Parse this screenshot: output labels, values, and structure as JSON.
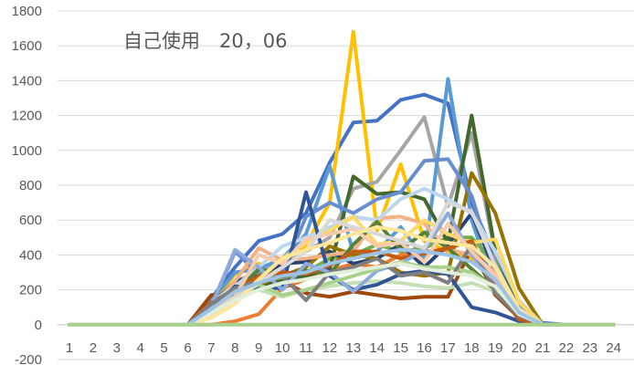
{
  "chart_data": {
    "type": "line",
    "title": "自己使用　20，06",
    "x": [
      1,
      2,
      3,
      4,
      5,
      6,
      7,
      8,
      9,
      10,
      11,
      12,
      13,
      14,
      15,
      16,
      17,
      18,
      19,
      20,
      21,
      22,
      23,
      24
    ],
    "xlabel": "",
    "ylabel": "",
    "ylim": [
      -200,
      1800
    ],
    "yticks": [
      -200,
      0,
      200,
      400,
      600,
      800,
      1000,
      1200,
      1400,
      1600,
      1800
    ],
    "grid": true,
    "legend": "none",
    "series": [
      {
        "color": "#4472C4",
        "values": [
          0,
          0,
          0,
          0,
          0,
          0,
          150,
          330,
          480,
          520,
          640,
          930,
          1160,
          1170,
          1290,
          1320,
          1270,
          700,
          380,
          120,
          10,
          0,
          0,
          0
        ]
      },
      {
        "color": "#FFC000",
        "values": [
          0,
          0,
          0,
          0,
          0,
          0,
          120,
          290,
          350,
          300,
          460,
          700,
          1680,
          540,
          920,
          480,
          420,
          380,
          300,
          80,
          0,
          0,
          0,
          0
        ]
      },
      {
        "color": "#A5A5A5",
        "values": [
          0,
          0,
          0,
          0,
          0,
          0,
          100,
          250,
          300,
          370,
          420,
          500,
          780,
          820,
          1000,
          1190,
          680,
          1100,
          400,
          120,
          0,
          0,
          0,
          0
        ]
      },
      {
        "color": "#5B9BD5",
        "values": [
          0,
          0,
          0,
          0,
          0,
          0,
          140,
          300,
          320,
          380,
          520,
          910,
          410,
          420,
          560,
          380,
          1410,
          600,
          200,
          80,
          0,
          0,
          0,
          0
        ]
      },
      {
        "color": "#70AD47",
        "values": [
          0,
          0,
          0,
          0,
          0,
          0,
          80,
          180,
          300,
          260,
          300,
          380,
          400,
          460,
          420,
          440,
          500,
          500,
          350,
          60,
          0,
          0,
          0,
          0
        ]
      },
      {
        "color": "#ED7D31",
        "values": [
          0,
          0,
          0,
          0,
          0,
          0,
          0,
          20,
          60,
          210,
          260,
          310,
          350,
          330,
          400,
          420,
          430,
          400,
          260,
          20,
          0,
          0,
          0,
          0
        ]
      },
      {
        "color": "#264478",
        "values": [
          0,
          0,
          0,
          0,
          0,
          0,
          110,
          250,
          280,
          350,
          360,
          420,
          350,
          380,
          460,
          330,
          460,
          640,
          300,
          90,
          0,
          0,
          0,
          0
        ]
      },
      {
        "color": "#9E480E",
        "values": [
          0,
          0,
          0,
          0,
          0,
          0,
          170,
          170,
          200,
          250,
          180,
          160,
          190,
          170,
          150,
          160,
          160,
          440,
          170,
          40,
          0,
          0,
          0,
          0
        ]
      },
      {
        "color": "#43682B",
        "values": [
          0,
          0,
          0,
          0,
          0,
          0,
          60,
          200,
          230,
          250,
          280,
          320,
          850,
          750,
          760,
          720,
          470,
          1200,
          420,
          100,
          0,
          0,
          0,
          0
        ]
      },
      {
        "color": "#997300",
        "values": [
          0,
          0,
          0,
          0,
          0,
          0,
          90,
          200,
          230,
          280,
          330,
          450,
          400,
          380,
          300,
          280,
          300,
          870,
          640,
          210,
          0,
          0,
          0,
          0
        ]
      },
      {
        "color": "#698ED0",
        "values": [
          0,
          0,
          0,
          0,
          0,
          0,
          100,
          420,
          290,
          300,
          620,
          700,
          640,
          720,
          760,
          940,
          950,
          740,
          300,
          100,
          0,
          0,
          0,
          0
        ]
      },
      {
        "color": "#F4B183",
        "values": [
          0,
          0,
          0,
          0,
          0,
          0,
          100,
          250,
          440,
          370,
          380,
          400,
          420,
          610,
          620,
          580,
          430,
          400,
          300,
          70,
          0,
          0,
          0,
          0
        ]
      },
      {
        "color": "#BDD7EE",
        "values": [
          0,
          0,
          0,
          0,
          0,
          0,
          130,
          220,
          330,
          450,
          500,
          560,
          620,
          600,
          720,
          780,
          720,
          640,
          420,
          140,
          0,
          0,
          0,
          0
        ]
      },
      {
        "color": "#C5E0B4",
        "values": [
          0,
          0,
          0,
          0,
          0,
          0,
          90,
          170,
          200,
          160,
          200,
          220,
          240,
          250,
          240,
          220,
          210,
          240,
          190,
          60,
          0,
          0,
          0,
          0
        ]
      },
      {
        "color": "#FFD966",
        "values": [
          0,
          0,
          0,
          0,
          0,
          0,
          50,
          160,
          260,
          380,
          470,
          540,
          620,
          460,
          480,
          600,
          520,
          470,
          490,
          130,
          0,
          0,
          0,
          0
        ]
      },
      {
        "color": "#548235",
        "values": [
          0,
          0,
          0,
          0,
          0,
          0,
          120,
          180,
          320,
          290,
          310,
          290,
          460,
          590,
          430,
          530,
          440,
          320,
          200,
          40,
          0,
          0,
          0,
          0
        ]
      },
      {
        "color": "#2F5597",
        "values": [
          0,
          0,
          0,
          0,
          0,
          0,
          80,
          220,
          210,
          210,
          760,
          280,
          200,
          230,
          290,
          310,
          290,
          100,
          70,
          20,
          0,
          0,
          0,
          0
        ]
      },
      {
        "color": "#C55A11",
        "values": [
          0,
          0,
          0,
          0,
          0,
          0,
          130,
          200,
          280,
          300,
          290,
          340,
          420,
          420,
          380,
          410,
          440,
          480,
          220,
          30,
          0,
          0,
          0,
          0
        ]
      },
      {
        "color": "#8FAADC",
        "values": [
          0,
          0,
          0,
          0,
          0,
          0,
          110,
          430,
          330,
          200,
          350,
          300,
          190,
          310,
          350,
          430,
          640,
          400,
          250,
          60,
          0,
          0,
          0,
          0
        ]
      },
      {
        "color": "#A9D18E",
        "values": [
          0,
          0,
          0,
          0,
          0,
          0,
          70,
          160,
          230,
          170,
          200,
          240,
          280,
          320,
          360,
          330,
          330,
          300,
          210,
          70,
          0,
          0,
          0,
          0
        ]
      },
      {
        "color": "#7F7F7F",
        "values": [
          0,
          0,
          0,
          0,
          0,
          0,
          120,
          210,
          250,
          280,
          140,
          300,
          330,
          380,
          280,
          300,
          240,
          460,
          180,
          50,
          0,
          0,
          0,
          0
        ]
      },
      {
        "color": "#F8CBAD",
        "values": [
          0,
          0,
          0,
          0,
          0,
          0,
          80,
          160,
          400,
          350,
          490,
          520,
          550,
          450,
          470,
          360,
          580,
          420,
          280,
          80,
          0,
          0,
          0,
          0
        ]
      },
      {
        "color": "#D9D9D9",
        "values": [
          0,
          0,
          0,
          0,
          0,
          0,
          60,
          150,
          240,
          330,
          420,
          600,
          560,
          520,
          480,
          440,
          700,
          650,
          340,
          90,
          0,
          0,
          0,
          0
        ]
      },
      {
        "color": "#FFE699",
        "values": [
          0,
          0,
          0,
          0,
          0,
          0,
          40,
          120,
          260,
          380,
          430,
          470,
          520,
          560,
          540,
          490,
          470,
          450,
          330,
          80,
          0,
          0,
          0,
          0
        ]
      },
      {
        "color": "#E2EFDA",
        "values": [
          0,
          0,
          0,
          0,
          0,
          0,
          70,
          140,
          200,
          240,
          260,
          290,
          310,
          330,
          350,
          320,
          300,
          280,
          220,
          60,
          0,
          0,
          0,
          0
        ]
      },
      {
        "color": "#9DC3E6",
        "values": [
          0,
          0,
          0,
          0,
          0,
          0,
          90,
          190,
          240,
          280,
          300,
          350,
          380,
          410,
          430,
          420,
          400,
          360,
          260,
          70,
          0,
          0,
          0,
          0
        ]
      },
      {
        "color": "#A9D18E",
        "values": [
          0,
          0,
          0,
          0,
          0,
          0,
          0,
          0,
          0,
          0,
          0,
          0,
          0,
          0,
          0,
          0,
          0,
          0,
          0,
          0,
          0,
          0,
          0,
          0
        ]
      }
    ]
  }
}
